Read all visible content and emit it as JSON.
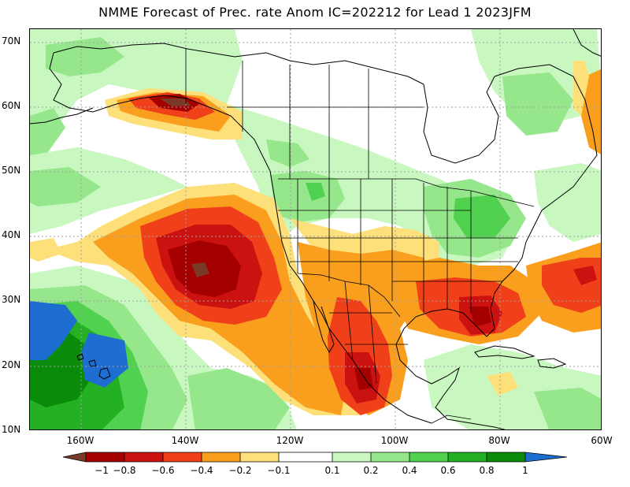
{
  "title": "NMME Forecast of Prec. rate Anom IC=202212 for Lead 1 2023JFM",
  "map": {
    "lat_labels": [
      "70N",
      "60N",
      "50N",
      "40N",
      "30N",
      "20N",
      "10N"
    ],
    "lon_labels": [
      "160W",
      "140W",
      "120W",
      "100W",
      "80W",
      "60W"
    ],
    "colors": {
      "ocean_land_neutral": "#ffffff",
      "coastline": "#000000",
      "grid": "#a0a0a0"
    }
  },
  "colorbar": {
    "labels": [
      "−1",
      "−0.8",
      "−0.6",
      "−0.4",
      "−0.2",
      "−0.1",
      "0.1",
      "0.2",
      "0.4",
      "0.6",
      "0.8",
      "1"
    ],
    "colors": [
      "#7a3a2a",
      "#a50000",
      "#cc1111",
      "#f0401a",
      "#fa9e1e",
      "#fde07a",
      "#ffffff",
      "#c8f8c0",
      "#96e68c",
      "#50d250",
      "#23b023",
      "#0a8c0a",
      "#1e6ed2"
    ]
  }
}
